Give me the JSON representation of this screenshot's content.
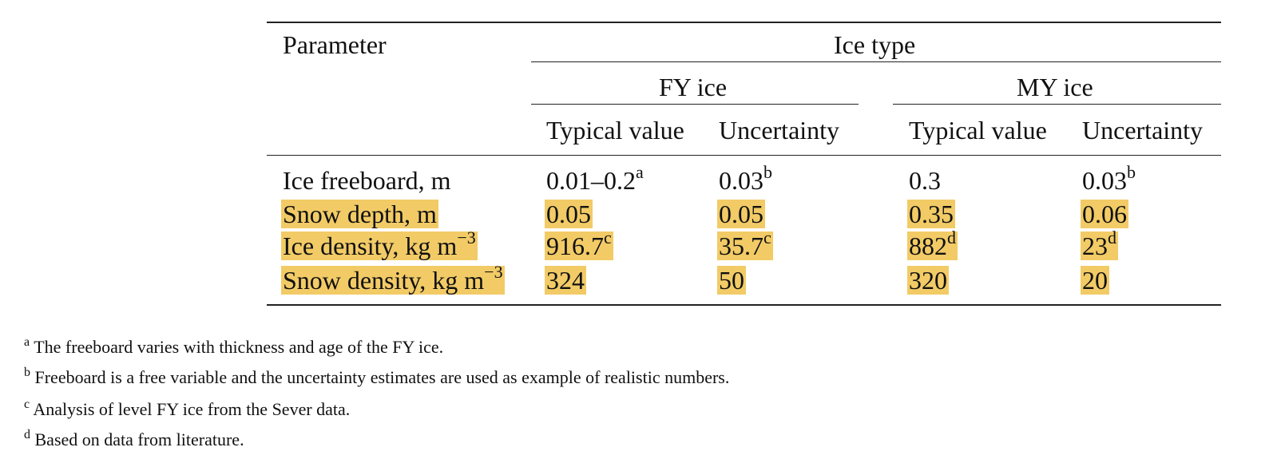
{
  "table": {
    "header": {
      "parameter": "Parameter",
      "ice_type": "Ice type",
      "fy_ice": "FY ice",
      "my_ice": "MY ice",
      "fy_typical": "Typical value",
      "fy_uncertainty": "Uncertainty",
      "my_typical": "Typical value",
      "my_uncertainty": "Uncertainty"
    },
    "rows": [
      {
        "param": "Ice freeboard, m",
        "param_sup": "",
        "fy_typical": "0.01–0.2",
        "fy_typical_sup": "a",
        "fy_unc": "0.03",
        "fy_unc_sup": "b",
        "my_typical": "0.3",
        "my_typical_sup": "",
        "my_unc": "0.03",
        "my_unc_sup": "b",
        "highlighted": false
      },
      {
        "param": "Snow depth, m",
        "param_sup": "",
        "fy_typical": "0.05",
        "fy_typical_sup": "",
        "fy_unc": "0.05",
        "fy_unc_sup": "",
        "my_typical": "0.35",
        "my_typical_sup": "",
        "my_unc": "0.06",
        "my_unc_sup": "",
        "highlighted": true
      },
      {
        "param": "Ice density, kg m",
        "param_sup": "−3",
        "fy_typical": "916.7",
        "fy_typical_sup": "c",
        "fy_unc": "35.7",
        "fy_unc_sup": "c",
        "my_typical": "882",
        "my_typical_sup": "d",
        "my_unc": "23",
        "my_unc_sup": "d",
        "highlighted": true
      },
      {
        "param": "Snow density, kg m",
        "param_sup": "−3",
        "fy_typical": "324",
        "fy_typical_sup": "",
        "fy_unc": "50",
        "fy_unc_sup": "",
        "my_typical": "320",
        "my_typical_sup": "",
        "my_unc": "20",
        "my_unc_sup": "",
        "highlighted": true
      }
    ]
  },
  "footnotes": [
    {
      "mark": "a",
      "text": "The freeboard varies with thickness and age of the FY ice."
    },
    {
      "mark": "b",
      "text": "Freeboard is a free variable and the uncertainty estimates are used as example of realistic numbers."
    },
    {
      "mark": "c",
      "text": "Analysis of level FY ice from the Sever data."
    },
    {
      "mark": "d",
      "text": "Based on data from literature."
    }
  ],
  "colors": {
    "highlight": "#f2cb66",
    "rule": "#222222"
  }
}
